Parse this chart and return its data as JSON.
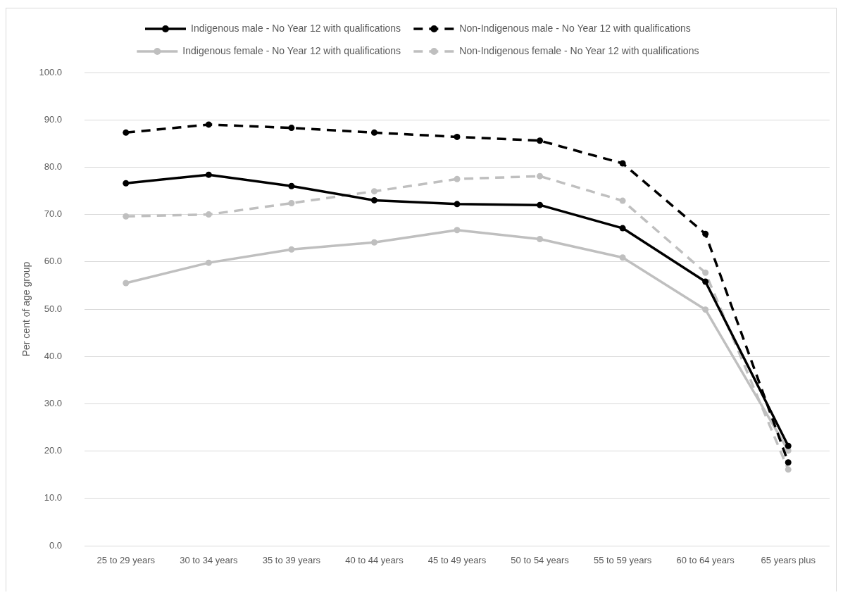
{
  "chart_data": {
    "type": "line",
    "categories": [
      "25 to 29 years",
      "30 to 34 years",
      "35 to 39 years",
      "40 to 44 years",
      "45 to 49 years",
      "50 to 54 years",
      "55 to 59 years",
      "60 to 64 years",
      "65 years plus"
    ],
    "series": [
      {
        "name": "Indigenous male - No Year 12 with qualifications",
        "color": "#000000",
        "line_style": "solid",
        "values": [
          76.6,
          78.4,
          76.0,
          73.0,
          72.2,
          72.0,
          67.1,
          55.8,
          21.1
        ]
      },
      {
        "name": "Non-Indigenous male - No Year 12 with qualifications",
        "color": "#000000",
        "line_style": "dashed",
        "values": [
          87.3,
          89.0,
          88.3,
          87.3,
          86.4,
          85.6,
          80.8,
          65.9,
          17.6
        ]
      },
      {
        "name": "Indigenous female - No Year 12 with qualifications",
        "color": "#bfbfbf",
        "line_style": "solid",
        "values": [
          55.5,
          59.8,
          62.6,
          64.1,
          66.7,
          64.8,
          60.9,
          49.9,
          20.1
        ]
      },
      {
        "name": "Non-Indigenous female - No Year 12 with qualifications",
        "color": "#bfbfbf",
        "line_style": "dashed",
        "values": [
          69.6,
          70.0,
          72.4,
          74.9,
          77.5,
          78.1,
          72.9,
          57.7,
          16.1
        ]
      }
    ],
    "ylabel": "Per cent of age group",
    "ylim": [
      0,
      100
    ],
    "yticks": [
      {
        "value": 0,
        "label": "0.0"
      },
      {
        "value": 10,
        "label": "10.0"
      },
      {
        "value": 20,
        "label": "20.0"
      },
      {
        "value": 30,
        "label": "30.0"
      },
      {
        "value": 40,
        "label": "40.0"
      },
      {
        "value": 50,
        "label": "50.0"
      },
      {
        "value": 60,
        "label": "60.0"
      },
      {
        "value": 70,
        "label": "70.0"
      },
      {
        "value": 80,
        "label": "80.0"
      },
      {
        "value": 90,
        "label": "90.0"
      },
      {
        "value": 100,
        "label": "100.0"
      }
    ],
    "grid": "y",
    "legend": "top",
    "marker": "circle"
  }
}
